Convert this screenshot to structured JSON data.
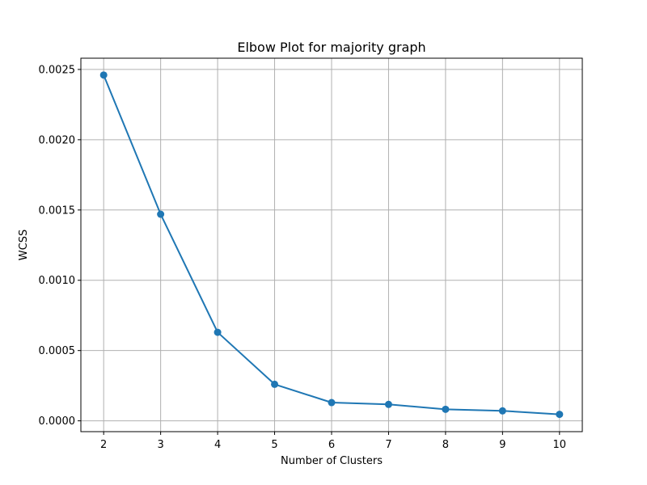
{
  "chart_data": {
    "type": "line",
    "title": "Elbow Plot for majority graph",
    "xlabel": "Number of Clusters",
    "ylabel": "WCSS",
    "x": [
      2,
      3,
      4,
      5,
      6,
      7,
      8,
      9,
      10
    ],
    "series": [
      {
        "values": [
          0.00246,
          0.00147,
          0.00063,
          0.00026,
          0.00013,
          0.000117,
          8.2e-05,
          7.1e-05,
          4.6e-05
        ],
        "color": "#1f77b4",
        "marker": "circle"
      }
    ],
    "xticks": [
      2,
      3,
      4,
      5,
      6,
      7,
      8,
      9,
      10
    ],
    "xtick_labels": [
      "2",
      "3",
      "4",
      "5",
      "6",
      "7",
      "8",
      "9",
      "10"
    ],
    "yticks": [
      0,
      0.0005,
      0.001,
      0.0015,
      0.002,
      0.0025
    ],
    "ytick_labels": [
      "0.0000",
      "0.0005",
      "0.0010",
      "0.0015",
      "0.0020",
      "0.0025"
    ],
    "xlim": [
      1.6,
      10.4
    ],
    "ylim": [
      -7.7e-05,
      0.00258
    ],
    "grid": true,
    "legend": false
  }
}
